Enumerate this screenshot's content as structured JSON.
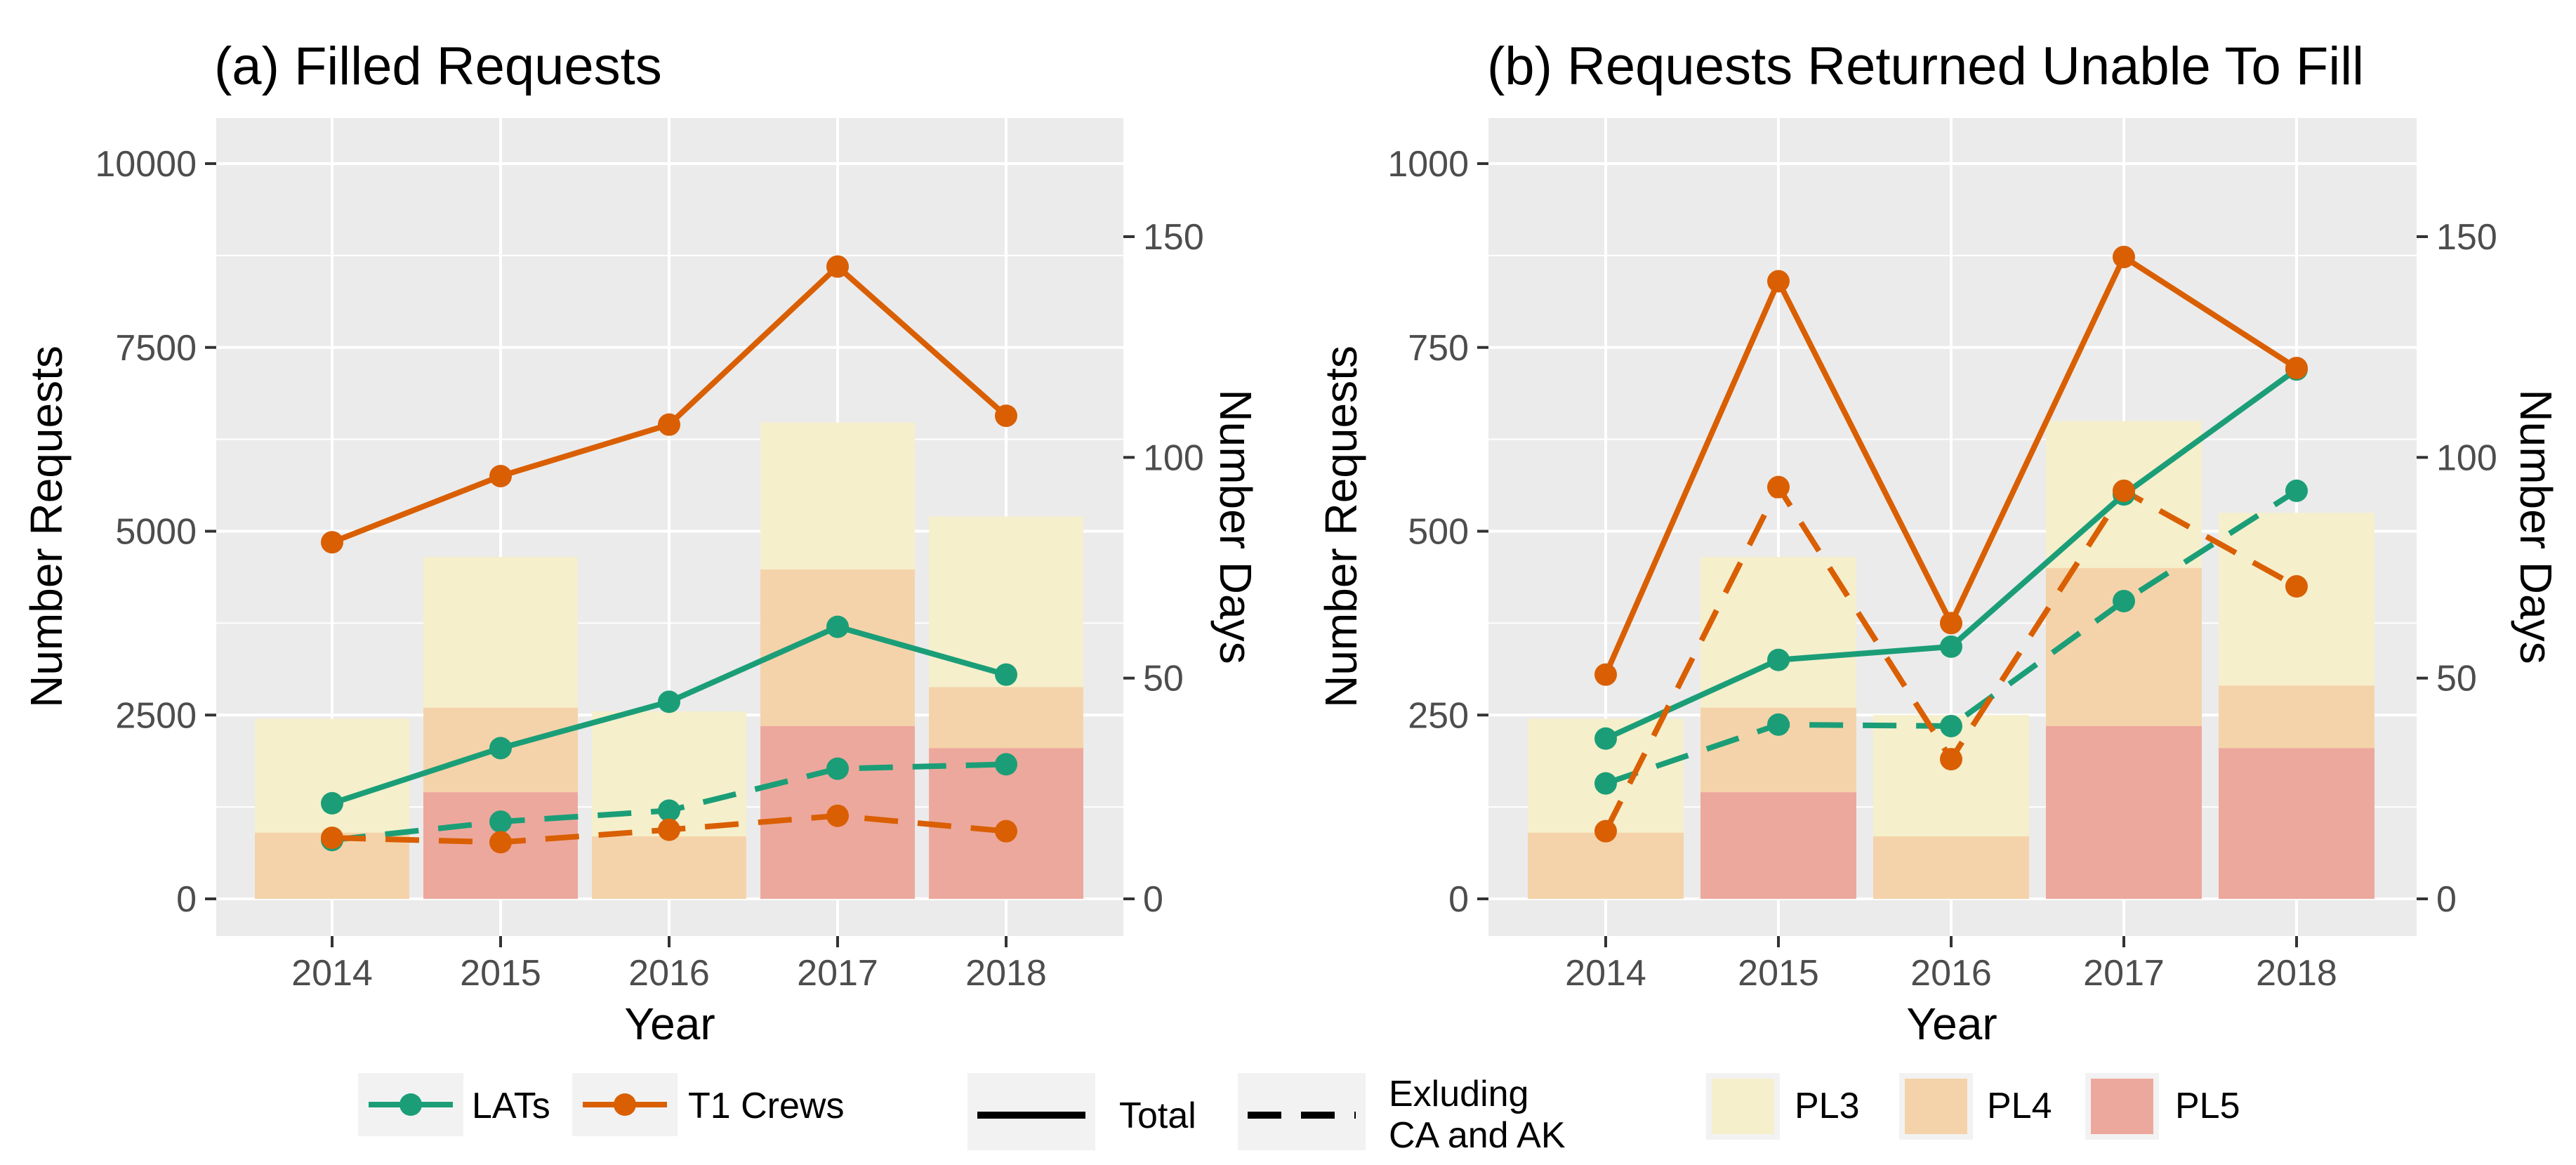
{
  "colors": {
    "lats": "#1b9e77",
    "t1": "#d95f02",
    "pl3": "#f5efcc",
    "pl4": "#f5d3aa",
    "pl5": "#eda89d",
    "panel_bg": "#ebebeb",
    "grid": "#ffffff"
  },
  "legend": {
    "lats": "LATs",
    "t1": "T1 Crews",
    "total": "Total",
    "excluding_line1": "Exluding",
    "excluding_line2": "CA and AK",
    "pl3": "PL3",
    "pl4": "PL4",
    "pl5": "PL5"
  },
  "chart_data": [
    {
      "type": "bar",
      "title": "(a) Filled Requests",
      "xlabel": "Year",
      "ylabel": "Number Requests",
      "y2label": "Number Days",
      "categories": [
        "2014",
        "2015",
        "2016",
        "2017",
        "2018"
      ],
      "ylim": [
        0,
        10000
      ],
      "y_ticks": [
        0,
        2500,
        5000,
        7500,
        10000
      ],
      "y2lim": [
        0,
        167
      ],
      "y2_ticks": [
        0,
        50,
        100,
        150
      ],
      "bars": [
        {
          "name": "PL3",
          "values": [
            2450,
            4650,
            2550,
            6480,
            5200
          ]
        },
        {
          "name": "PL4",
          "values": [
            900,
            2600,
            850,
            4480,
            2880
          ]
        },
        {
          "name": "PL5",
          "values": [
            0,
            1450,
            0,
            2350,
            2050
          ]
        }
      ],
      "series": [
        {
          "name": "LATs Total",
          "group": "LATs",
          "linetype": "solid",
          "axis": "left",
          "values": [
            1300,
            2050,
            2680,
            3700,
            3050
          ]
        },
        {
          "name": "LATs Exluding CA and AK",
          "group": "LATs",
          "linetype": "dashed",
          "axis": "left",
          "values": [
            800,
            1050,
            1200,
            1770,
            1830
          ]
        },
        {
          "name": "T1 Crews Total",
          "group": "T1 Crews",
          "linetype": "solid",
          "axis": "left",
          "values": [
            4850,
            5750,
            6450,
            8600,
            6570
          ]
        },
        {
          "name": "T1 Crews Exluding CA and AK",
          "group": "T1 Crews",
          "linetype": "dashed",
          "axis": "left",
          "values": [
            830,
            770,
            940,
            1130,
            920
          ]
        }
      ]
    },
    {
      "type": "bar",
      "title": "(b) Requests Returned Unable To Fill",
      "xlabel": "Year",
      "ylabel": "Number Requests",
      "y2label": "Number Days",
      "categories": [
        "2014",
        "2015",
        "2016",
        "2017",
        "2018"
      ],
      "ylim": [
        0,
        1000
      ],
      "y_ticks": [
        0,
        250,
        500,
        750,
        1000
      ],
      "y2lim": [
        0,
        167
      ],
      "y2_ticks": [
        0,
        50,
        100,
        150
      ],
      "bars": [
        {
          "name": "PL3",
          "values": [
            245,
            465,
            250,
            650,
            525
          ]
        },
        {
          "name": "PL4",
          "values": [
            90,
            260,
            85,
            450,
            290
          ]
        },
        {
          "name": "PL5",
          "values": [
            0,
            145,
            0,
            235,
            205
          ]
        }
      ],
      "series": [
        {
          "name": "LATs Total",
          "group": "LATs",
          "linetype": "solid",
          "axis": "left",
          "values": [
            218,
            325,
            343,
            550,
            720
          ]
        },
        {
          "name": "LATs Exluding CA and AK",
          "group": "LATs",
          "linetype": "dashed",
          "axis": "left",
          "values": [
            157,
            237,
            235,
            405,
            555
          ]
        },
        {
          "name": "T1 Crews Total",
          "group": "T1 Crews",
          "linetype": "solid",
          "axis": "left",
          "values": [
            305,
            840,
            375,
            873,
            722
          ]
        },
        {
          "name": "T1 Crews Exluding CA and AK",
          "group": "T1 Crews",
          "linetype": "dashed",
          "axis": "left",
          "values": [
            92,
            560,
            190,
            555,
            425
          ]
        }
      ]
    }
  ]
}
